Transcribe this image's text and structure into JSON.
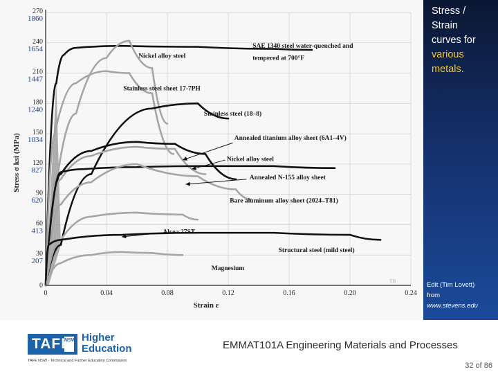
{
  "slide": {
    "title_lines": [
      "Stress /",
      "Strain",
      "curves for"
    ],
    "title_highlight_lines": [
      "various",
      "metals."
    ],
    "credit_lines": [
      "Edit (Tim Lovett)",
      "from"
    ],
    "credit_url": "www.stevens.edu",
    "course_title": "EMMAT101A Engineering Materials and Processes",
    "page": "32 of 86",
    "logo_text": "TAFE",
    "logo_badge": "NSW",
    "logo_subtitle_lines": [
      "Higher",
      "Education"
    ],
    "commission_text": "TAFE NSW - Technical and Further Education Commission",
    "colors": {
      "panel": "#14306b",
      "highlight": "#f3c623",
      "brand": "#1b62a8"
    }
  },
  "chart_data": {
    "type": "line",
    "xlabel": "Strain",
    "xlabel_symbol": "ε",
    "ylabel": "Stress",
    "ylabel_symbol": "σ",
    "ylabel_units": "ksi (MPa)",
    "xlim": [
      0,
      0.24
    ],
    "ylim": [
      0,
      270
    ],
    "x_ticks": [
      "0",
      "0.04",
      "0.08",
      "0.12",
      "0.16",
      "0.20",
      "0.24"
    ],
    "y_ticks_ksi": [
      "30",
      "60",
      "90",
      "120",
      "150",
      "180",
      "210",
      "240",
      "270"
    ],
    "y_ticks_mpa": [
      "207",
      "413",
      "620",
      "827",
      "1034",
      "1240",
      "1447",
      "1654",
      "1860"
    ],
    "watermark": "TH",
    "series": [
      {
        "name": "SAE 1340 steel water-quenched and tempered at 700°F",
        "color": "#111111",
        "x": [
          0,
          0.007,
          0.012,
          0.02,
          0.05,
          0.1,
          0.15,
          0.175
        ],
        "y": [
          0,
          200,
          228,
          235,
          237,
          236,
          234,
          233
        ]
      },
      {
        "name": "Nickel alloy steel",
        "color": "#a5a5a5",
        "x": [
          0,
          0.008,
          0.02,
          0.04,
          0.055,
          0.07,
          0.08
        ],
        "y": [
          0,
          110,
          170,
          225,
          242,
          215,
          160
        ]
      },
      {
        "name": "Stainless steel sheet 17-7PH",
        "color": "#a5a5a5",
        "x": [
          0,
          0.006,
          0.02,
          0.04,
          0.055,
          0.07,
          0.084
        ],
        "y": [
          0,
          150,
          200,
          212,
          210,
          190,
          130
        ]
      },
      {
        "name": "Stainless steel (18-8)",
        "color": "#111111",
        "x": [
          0,
          0.01,
          0.03,
          0.07,
          0.1,
          0.12
        ],
        "y": [
          0,
          40,
          110,
          175,
          180,
          165
        ]
      },
      {
        "name": "Annealed titanium alloy sheet (6A1-4V)",
        "color": "#111111",
        "x": [
          0,
          0.01,
          0.03,
          0.06,
          0.085,
          0.105,
          0.125
        ],
        "y": [
          0,
          110,
          133,
          142,
          140,
          130,
          105
        ]
      },
      {
        "name": "Nickel alloy steel",
        "color": "#a5a5a5",
        "x": [
          0,
          0.01,
          0.03,
          0.06,
          0.085,
          0.105
        ],
        "y": [
          0,
          105,
          128,
          137,
          135,
          110
        ]
      },
      {
        "name": "Annealed N-155 alloy sheet",
        "color": "#111111",
        "x": [
          0,
          0.01,
          0.025,
          0.06,
          0.1,
          0.15,
          0.19
        ],
        "y": [
          0,
          112,
          115,
          117,
          118,
          118,
          116
        ]
      },
      {
        "name": "Bare aluminum alloy sheet (2024-T81)",
        "color": "#a5a5a5",
        "x": [
          0,
          0.01,
          0.03,
          0.06,
          0.1,
          0.125,
          0.135
        ],
        "y": [
          0,
          80,
          102,
          120,
          108,
          95,
          85
        ]
      },
      {
        "name": "Alcoa 27ST",
        "color": "#a5a5a5",
        "x": [
          0,
          0.01,
          0.03,
          0.06,
          0.09,
          0.1
        ],
        "y": [
          0,
          45,
          68,
          72,
          70,
          65
        ]
      },
      {
        "name": "Structural steel (mild steel)",
        "color": "#111111",
        "x": [
          0,
          0.002,
          0.01,
          0.05,
          0.1,
          0.15,
          0.2,
          0.22
        ],
        "y": [
          0,
          40,
          45,
          50,
          52,
          52,
          50,
          45
        ]
      },
      {
        "name": "Magnesium",
        "color": "#a5a5a5",
        "x": [
          0,
          0.01,
          0.03,
          0.05,
          0.07,
          0.09
        ],
        "y": [
          0,
          22,
          30,
          33,
          32,
          30
        ]
      }
    ],
    "labels": [
      {
        "text": "SAE 1340 steel water-quenched and",
        "x": 0.136,
        "y": 235
      },
      {
        "text": "tempered at 700°F",
        "x": 0.136,
        "y": 223
      },
      {
        "text": "Nickel alloy steel",
        "x": 0.061,
        "y": 225
      },
      {
        "text": "Stainless steel sheet 17-7PH",
        "x": 0.051,
        "y": 193
      },
      {
        "text": "Stainless steel (18–8)",
        "x": 0.104,
        "y": 168
      },
      {
        "text": "Annealed titanium alloy sheet (6A1–4V)",
        "x": 0.124,
        "y": 144
      },
      {
        "text": "Nickel alloy steel",
        "x": 0.119,
        "y": 123
      },
      {
        "text": "Annealed N-155 alloy sheet",
        "x": 0.134,
        "y": 105
      },
      {
        "text": "Bare aluminum alloy sheet (2024–T81)",
        "x": 0.121,
        "y": 82
      },
      {
        "text": "Alcoa 27ST",
        "x": 0.077,
        "y": 51
      },
      {
        "text": "Structural steel (mild steel)",
        "x": 0.153,
        "y": 33
      },
      {
        "text": "Magnesium",
        "x": 0.109,
        "y": 15
      }
    ],
    "pointers": [
      {
        "from": [
          0.118,
          124
        ],
        "to": [
          0.096,
          115
        ]
      },
      {
        "from": [
          0.123,
          141
        ],
        "to": [
          0.09,
          124
        ]
      },
      {
        "from": [
          0.132,
          105
        ],
        "to": [
          0.092,
          100
        ]
      },
      {
        "from": [
          0.076,
          52
        ],
        "to": [
          0.05,
          48
        ]
      }
    ],
    "grid": true
  }
}
